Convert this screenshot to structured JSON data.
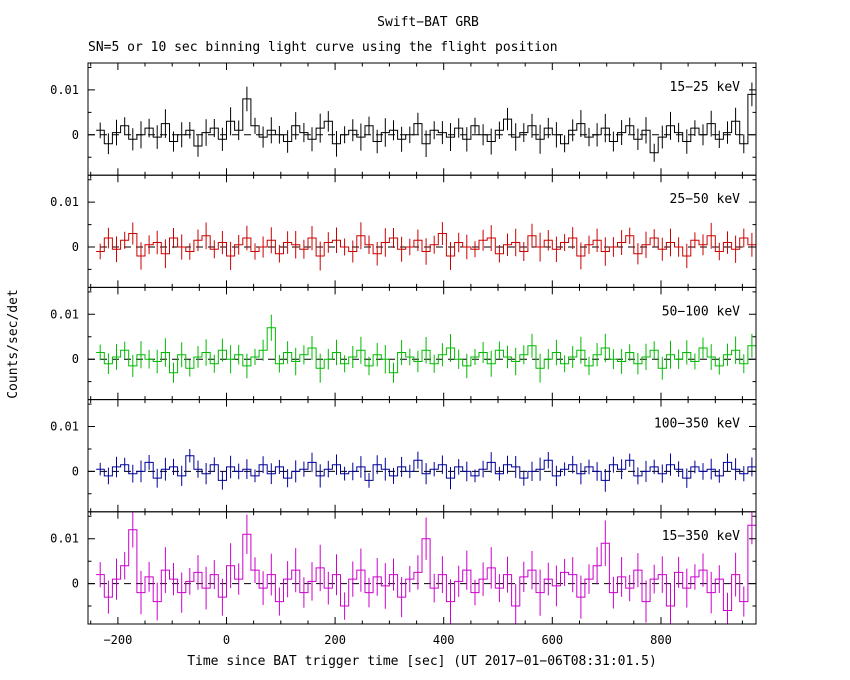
{
  "chart_data": {
    "type": "line",
    "style": "step-histogram-with-error-bars, 5 stacked panels",
    "title": "Swift−BAT GRB",
    "subtitle": "SN=5 or 10 sec binning light curve using the flight position",
    "xlabel": "Time since BAT trigger time [sec] (UT 2017−01−06T08:31:01.5)",
    "ylabel": "Counts/sec/det",
    "xlim": [
      -255,
      975
    ],
    "ylim": [
      -0.009,
      0.016
    ],
    "grid": false,
    "zero_line": {
      "style": "dashed",
      "color": "#000000"
    },
    "bin_start": -240,
    "bin_width": 15,
    "x_minor_step": 50,
    "xticks": [
      {
        "value": -200,
        "label": "−200"
      },
      {
        "value": 0,
        "label": "0"
      },
      {
        "value": 200,
        "label": "200"
      },
      {
        "value": 400,
        "label": "400"
      },
      {
        "value": 600,
        "label": "600"
      },
      {
        "value": 800,
        "label": "800"
      }
    ],
    "yticks": [
      {
        "value": 0.01,
        "label": "0.01"
      },
      {
        "value": 0,
        "label": "0"
      }
    ],
    "y_minor_ticks": [
      0.015,
      0.005,
      -0.005
    ],
    "panels": [
      {
        "label": "15−25 keV",
        "color": "#000000",
        "err": 0.0025,
        "values": [
          0.001,
          -0.002,
          0.0005,
          0.002,
          -0.001,
          0,
          0.0015,
          -0.0005,
          0.0025,
          -0.0015,
          0,
          0.001,
          -0.0025,
          0.0005,
          0.0015,
          -0.001,
          0.003,
          0.001,
          0.008,
          0.002,
          -0.0005,
          0.001,
          0,
          -0.0015,
          0.002,
          0.0005,
          -0.001,
          0.0015,
          0.003,
          -0.002,
          0,
          0.001,
          -0.0005,
          0.002,
          -0.0015,
          0.0005,
          0.001,
          -0.001,
          0,
          0.0025,
          -0.002,
          0.001,
          0.0005,
          -0.0005,
          0.0015,
          -0.001,
          0.002,
          0,
          -0.0015,
          0.001,
          0.0035,
          -0.0005,
          0.0005,
          0.002,
          -0.001,
          0.0015,
          0,
          -0.002,
          0.001,
          0.0025,
          -0.0005,
          0,
          0.0015,
          -0.0015,
          0.0005,
          0.002,
          -0.001,
          0.001,
          -0.004,
          -0.0005,
          0.002,
          0.0005,
          -0.0015,
          0.0015,
          0,
          0.0025,
          -0.001,
          0.0005,
          0.003,
          -0.002,
          0.009
        ]
      },
      {
        "label": "25−50 keV",
        "color": "#cc0000",
        "err": 0.0025,
        "values": [
          -0.001,
          0.002,
          -0.0005,
          0.0015,
          0.003,
          -0.002,
          0.0005,
          0.001,
          -0.0015,
          0.002,
          0,
          -0.001,
          0.0015,
          0.0025,
          -0.0005,
          0.001,
          -0.002,
          0.0005,
          0.002,
          -0.001,
          0,
          0.0015,
          -0.0015,
          0.001,
          0.0005,
          -0.0005,
          0.002,
          -0.002,
          0.001,
          0.0015,
          0,
          -0.001,
          0.0025,
          0.0005,
          -0.0015,
          0.001,
          0.002,
          -0.0005,
          0,
          0.0015,
          -0.001,
          0.0005,
          0.003,
          -0.002,
          0.001,
          0,
          -0.0005,
          0.0015,
          0.002,
          -0.0015,
          0.0005,
          0.001,
          -0.001,
          0.0025,
          0,
          0.0015,
          -0.0005,
          0.001,
          0.002,
          -0.002,
          0.0005,
          0.0015,
          -0.001,
          0,
          0.001,
          0.0025,
          -0.0015,
          0.0005,
          0.002,
          -0.0005,
          0.001,
          0,
          -0.002,
          0.0015,
          0.0005,
          0.0025,
          -0.001,
          0.001,
          -0.0005,
          0.002,
          0.0005
        ]
      },
      {
        "label": "50−100 keV",
        "color": "#00bb00",
        "err": 0.0025,
        "values": [
          0.0015,
          -0.001,
          0.0005,
          0.002,
          -0.0015,
          0.001,
          0,
          -0.0005,
          0.0015,
          -0.003,
          0.001,
          -0.002,
          0.0005,
          0.0015,
          -0.001,
          0.002,
          0,
          0.001,
          -0.0015,
          0.0005,
          0.002,
          0.007,
          -0.001,
          0.0015,
          -0.0005,
          0.001,
          0.0025,
          -0.002,
          0,
          0.0015,
          -0.001,
          0.0005,
          0.002,
          -0.0015,
          0.001,
          0,
          -0.003,
          0.0015,
          0.0005,
          -0.0005,
          0.002,
          -0.001,
          0.001,
          0.0025,
          0,
          -0.0015,
          0.0005,
          0.0015,
          -0.001,
          0.002,
          0.0005,
          -0.0005,
          0.001,
          0.003,
          -0.002,
          0,
          0.0015,
          -0.001,
          0.0005,
          0.002,
          -0.0015,
          0.001,
          0.0025,
          0,
          -0.0005,
          0.0015,
          -0.001,
          0.0005,
          0.002,
          -0.002,
          0.001,
          0,
          0.0015,
          -0.0005,
          0.0025,
          0.0005,
          -0.0015,
          0.001,
          0.002,
          -0.001,
          0.003
        ]
      },
      {
        "label": "100−350 keV",
        "color": "#000099",
        "err": 0.002,
        "values": [
          0.0005,
          -0.001,
          0.001,
          0.0015,
          -0.0005,
          0,
          0.002,
          -0.0015,
          0.0005,
          0.001,
          -0.001,
          0.0035,
          0.0005,
          -0.0005,
          0.0015,
          -0.002,
          0.001,
          0,
          0.0005,
          -0.001,
          0.0015,
          -0.0005,
          0.001,
          -0.0015,
          0,
          0.0005,
          0.002,
          -0.001,
          0.0005,
          0.0015,
          -0.0005,
          0,
          0.001,
          -0.002,
          0.0015,
          0.0005,
          -0.001,
          0.001,
          0,
          0.0025,
          -0.0005,
          0.0005,
          0.0015,
          -0.0015,
          0.001,
          0,
          -0.001,
          0.0005,
          0.002,
          -0.0005,
          0.0015,
          0.001,
          -0.0015,
          0,
          0.0005,
          0.0025,
          -0.001,
          0.0005,
          0.0015,
          -0.0005,
          0.001,
          0,
          -0.002,
          0.0015,
          0.0005,
          0.0025,
          -0.001,
          0,
          0.001,
          -0.0005,
          0.0015,
          0.0005,
          -0.0015,
          0.001,
          0,
          0.0005,
          -0.001,
          0.002,
          0.0005,
          -0.0005,
          0.001
        ]
      },
      {
        "label": "15−350 keV",
        "color": "#cc00cc",
        "err": 0.004,
        "values": [
          0.002,
          -0.003,
          0.001,
          0.004,
          0.012,
          -0.002,
          0.0015,
          -0.004,
          0.003,
          0.001,
          -0.002,
          0.0005,
          0.0025,
          -0.001,
          0.002,
          -0.003,
          0.004,
          0.001,
          0.011,
          0.003,
          -0.001,
          0.002,
          -0.004,
          0.001,
          0.003,
          -0.002,
          0.0005,
          0.0035,
          -0.001,
          0.002,
          -0.005,
          0.001,
          0.003,
          -0.002,
          0.0015,
          -0.0005,
          0.002,
          -0.003,
          0.001,
          0.0025,
          0.01,
          -0.001,
          0.002,
          -0.004,
          0.0005,
          0.003,
          -0.002,
          0.001,
          0.0035,
          -0.001,
          0.002,
          -0.005,
          0.0015,
          0.003,
          -0.002,
          0.001,
          -0.0005,
          0.0025,
          0.002,
          -0.003,
          0.001,
          0.004,
          0.009,
          -0.002,
          0.0015,
          -0.001,
          0.003,
          -0.004,
          0.001,
          0.002,
          -0.005,
          0.0025,
          -0.001,
          0.0015,
          0.003,
          -0.002,
          0.001,
          -0.006,
          0.002,
          -0.004,
          0.013
        ]
      }
    ]
  }
}
